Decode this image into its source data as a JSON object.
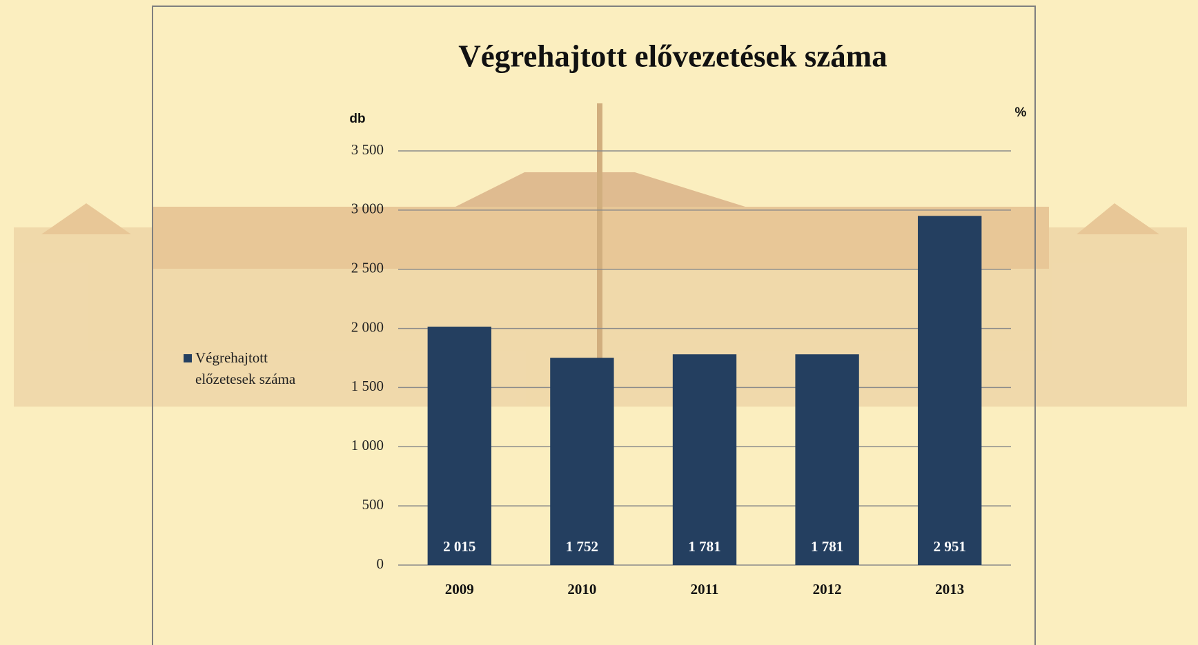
{
  "chart_data": {
    "type": "bar",
    "title": "Végrehajtott elővezetések száma",
    "y_label": "db",
    "y2_label": "%",
    "categories": [
      "2009",
      "2010",
      "2011",
      "2012",
      "2013"
    ],
    "series": [
      {
        "name": "Végrehajtott előzetesek száma",
        "color": "#243f60",
        "values": [
          2015,
          1752,
          1781,
          1781,
          2951
        ],
        "value_labels": [
          "2 015",
          "1 752",
          "1 781",
          "1 781",
          "2 951"
        ]
      }
    ],
    "ylim": [
      0,
      3500
    ],
    "yticks": [
      0,
      500,
      {
        "value": 1000,
        "label": "1 000"
      },
      {
        "value": 1500,
        "label": "1 500"
      },
      {
        "value": 2000,
        "label": "2 000"
      },
      {
        "value": 2500,
        "label": "2 500"
      },
      {
        "value": 3000,
        "label": "3 000"
      },
      {
        "value": 3500,
        "label": "3 500"
      }
    ],
    "grid": true,
    "legend": "left"
  }
}
